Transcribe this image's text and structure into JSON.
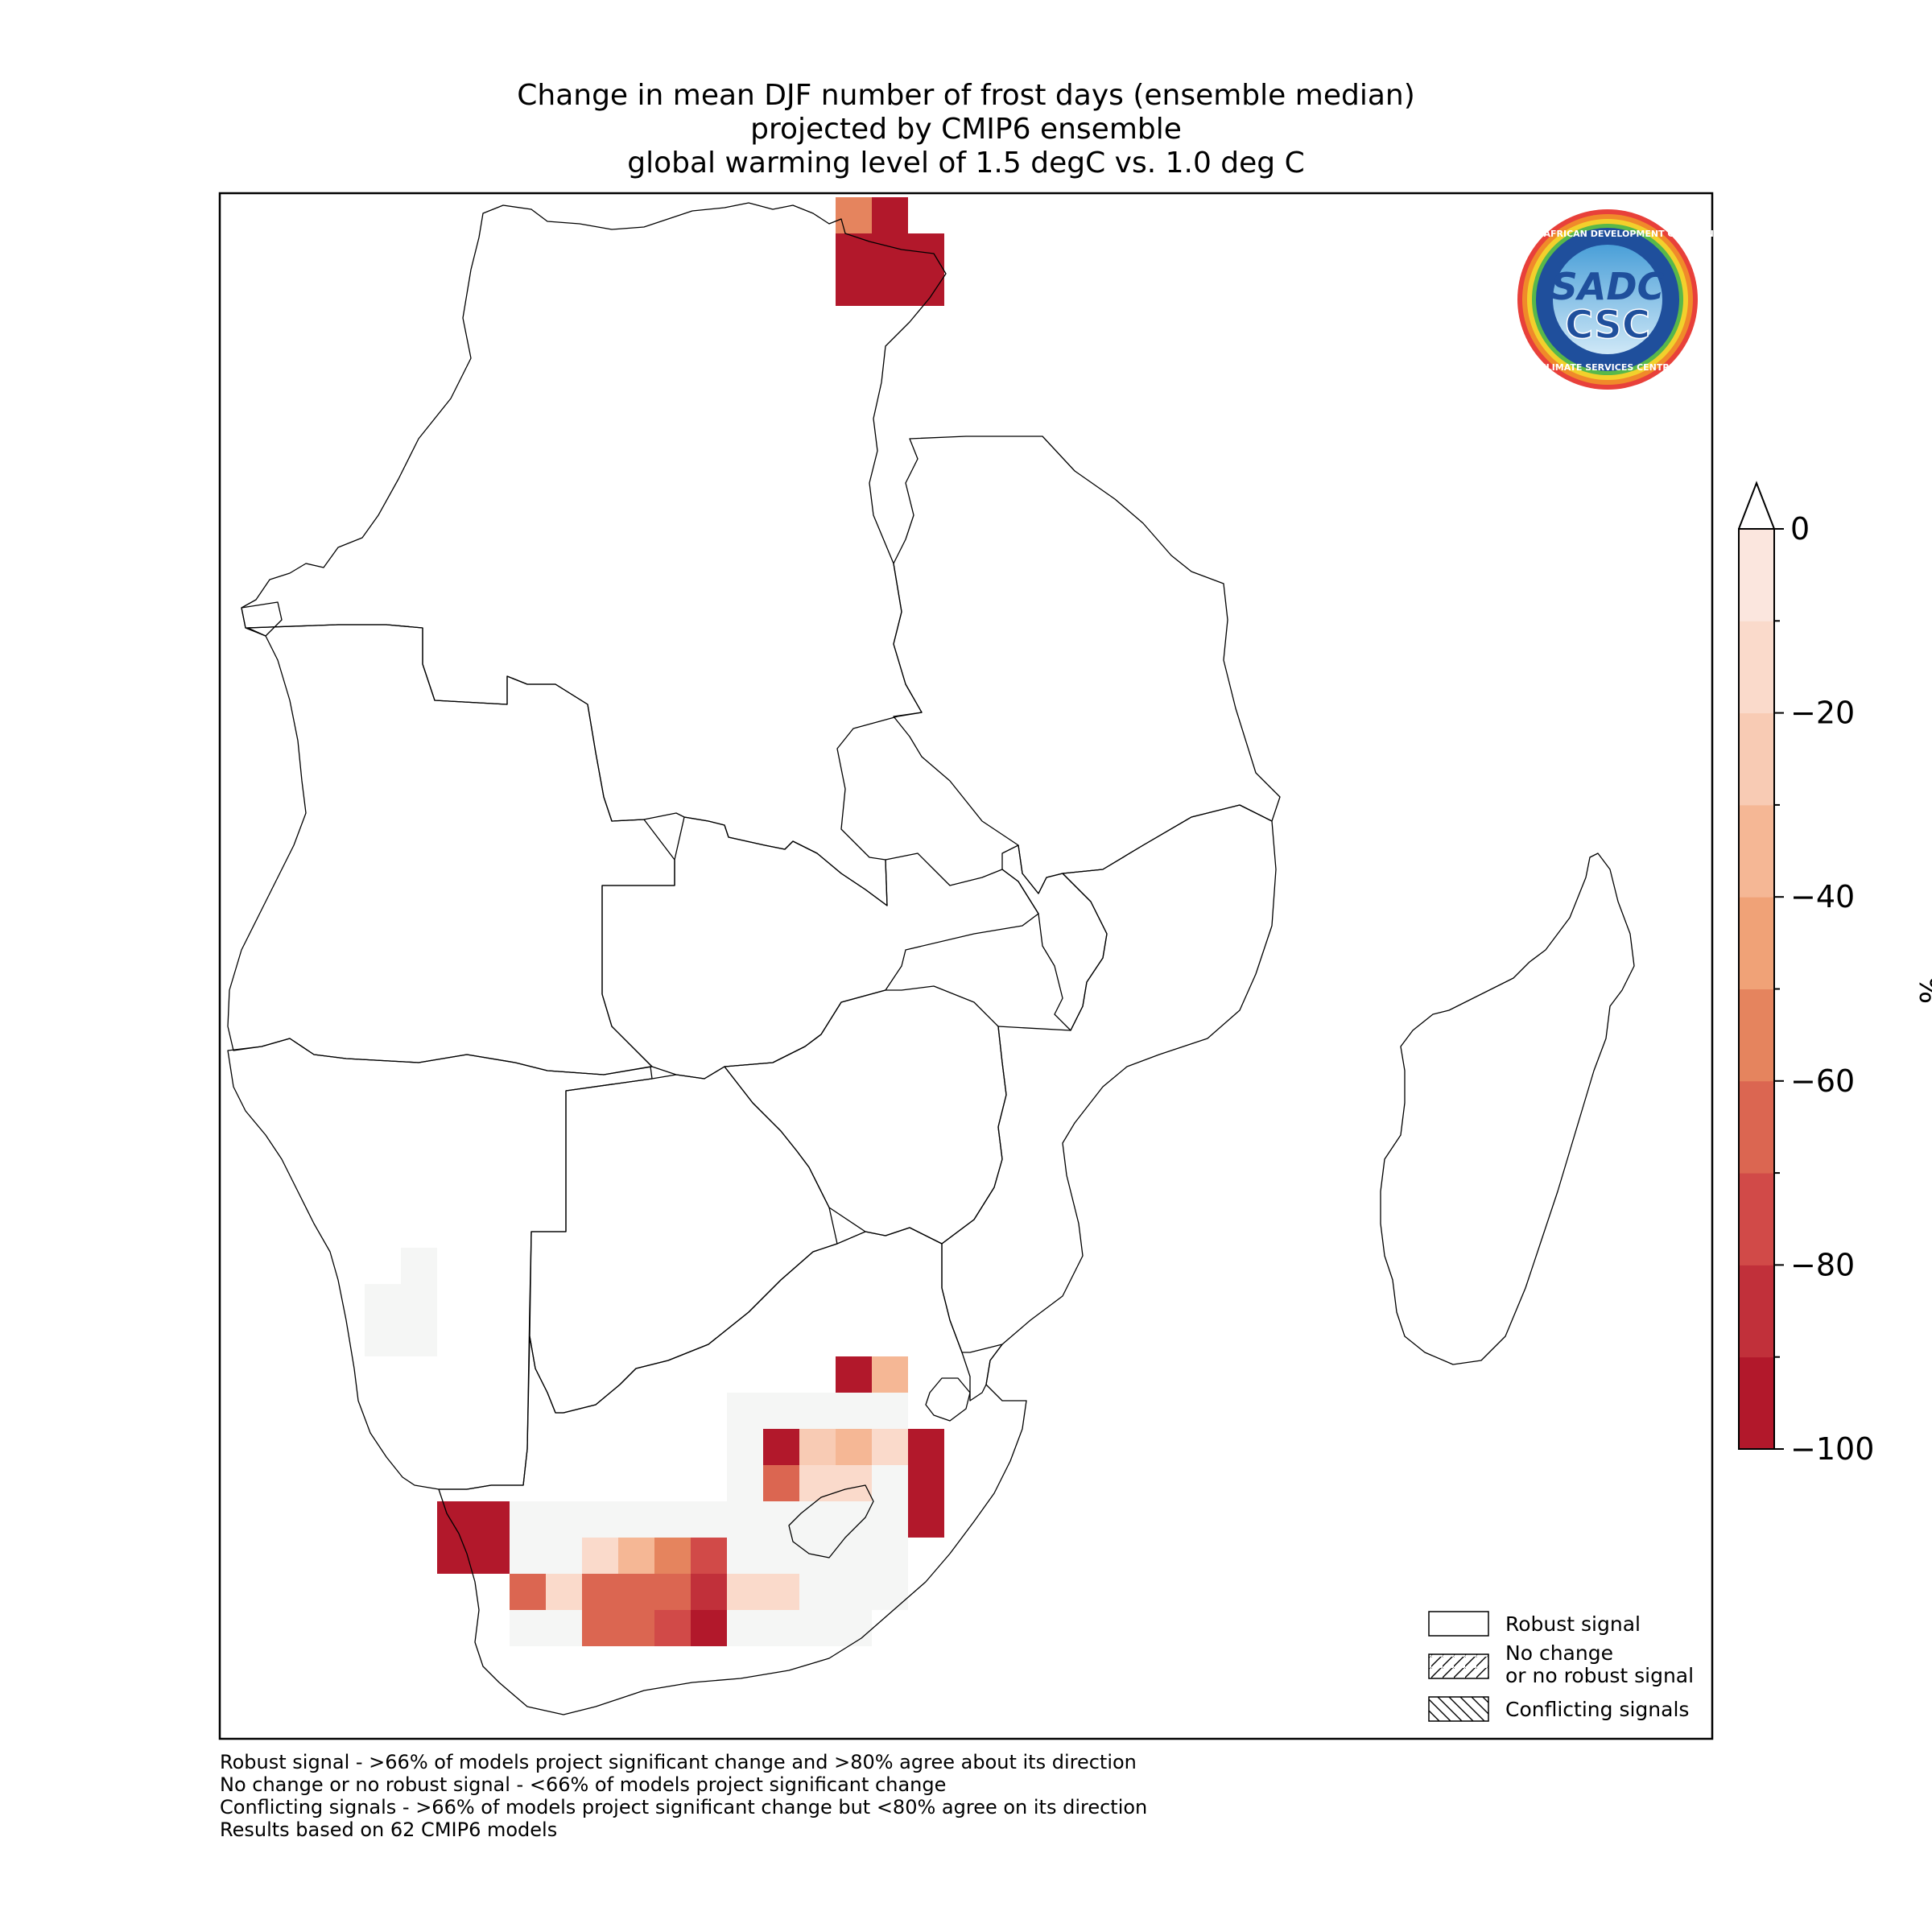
{
  "title": {
    "line1": "Change in mean DJF number of frost days (ensemble median)",
    "line2": "projected by CMIP6 ensemble",
    "line3": "global warming level of 1.5 degC vs. 1.0 deg C"
  },
  "colorbar": {
    "unit": "%",
    "ticks": [
      "0",
      "−20",
      "−40",
      "−60",
      "−80",
      "−100"
    ],
    "tick_values": [
      0,
      -20,
      -40,
      -60,
      -80,
      -100
    ],
    "range": [
      -100,
      0
    ],
    "extend": "max",
    "colors": [
      "#b2182b",
      "#c1303a",
      "#d14a48",
      "#db6651",
      "#e5845e",
      "#f0a277",
      "#f5b795",
      "#f8cbb4",
      "#fadacb",
      "#fbe6de"
    ]
  },
  "legend": {
    "robust": "Robust signal",
    "no_change_line1": "No change",
    "no_change_line2": "or no robust signal",
    "conflicting": "Conflicting signals"
  },
  "footnotes": {
    "line1": "Robust signal - >66% of models project significant change and >80% agree about its direction",
    "line2": "No change or no robust signal - <66% of models project significant change",
    "line3": "Conflicting signals - >66% of models project significant change but <80% agree on its direction",
    "line4": "Results based on 62 CMIP6 models"
  },
  "logo": {
    "top_text": "SOUTHERN AFRICAN DEVELOPMENT COMMUNITY",
    "bottom_text": "CLIMATE SERVICES CENTRE",
    "monogram_top": "SADC",
    "monogram_bottom": "CSC"
  },
  "map_cells": [
    {
      "row": 0,
      "col": 17,
      "value": -60
    },
    {
      "row": 0,
      "col": 18,
      "value": -100
    },
    {
      "row": 1,
      "col": 17,
      "value": -100
    },
    {
      "row": 1,
      "col": 18,
      "value": -100
    },
    {
      "row": 1,
      "col": 19,
      "value": -100
    },
    {
      "row": 2,
      "col": 17,
      "value": -100
    },
    {
      "row": 2,
      "col": 18,
      "value": -100
    },
    {
      "row": 2,
      "col": 19,
      "value": -100
    },
    {
      "row": 29,
      "col": 5,
      "value": 0
    },
    {
      "row": 30,
      "col": 4,
      "value": 0
    },
    {
      "row": 30,
      "col": 5,
      "value": 0
    },
    {
      "row": 31,
      "col": 4,
      "value": 0
    },
    {
      "row": 31,
      "col": 5,
      "value": 0
    },
    {
      "row": 32,
      "col": 17,
      "value": -100
    },
    {
      "row": 32,
      "col": 18,
      "value": -35
    },
    {
      "row": 33,
      "col": 14,
      "value": 0
    },
    {
      "row": 33,
      "col": 15,
      "value": 0
    },
    {
      "row": 33,
      "col": 16,
      "value": 0
    },
    {
      "row": 33,
      "col": 17,
      "value": 0
    },
    {
      "row": 33,
      "col": 18,
      "value": 0
    },
    {
      "row": 34,
      "col": 14,
      "value": 0
    },
    {
      "row": 34,
      "col": 15,
      "value": -100
    },
    {
      "row": 34,
      "col": 16,
      "value": -25
    },
    {
      "row": 34,
      "col": 17,
      "value": -35
    },
    {
      "row": 34,
      "col": 18,
      "value": -15
    },
    {
      "row": 34,
      "col": 19,
      "value": -100
    },
    {
      "row": 35,
      "col": 14,
      "value": 0
    },
    {
      "row": 35,
      "col": 15,
      "value": -65
    },
    {
      "row": 35,
      "col": 16,
      "value": -15
    },
    {
      "row": 35,
      "col": 17,
      "value": -15
    },
    {
      "row": 35,
      "col": 18,
      "value": 0
    },
    {
      "row": 35,
      "col": 19,
      "value": -100
    },
    {
      "row": 36,
      "col": 6,
      "value": -100
    },
    {
      "row": 36,
      "col": 7,
      "value": -100
    },
    {
      "row": 36,
      "col": 8,
      "value": 0
    },
    {
      "row": 36,
      "col": 9,
      "value": 0
    },
    {
      "row": 36,
      "col": 10,
      "value": 0
    },
    {
      "row": 36,
      "col": 11,
      "value": 0
    },
    {
      "row": 36,
      "col": 12,
      "value": 0
    },
    {
      "row": 36,
      "col": 13,
      "value": 0
    },
    {
      "row": 36,
      "col": 14,
      "value": 0
    },
    {
      "row": 36,
      "col": 15,
      "value": 0
    },
    {
      "row": 36,
      "col": 16,
      "value": 0
    },
    {
      "row": 36,
      "col": 17,
      "value": 0
    },
    {
      "row": 36,
      "col": 18,
      "value": 0
    },
    {
      "row": 36,
      "col": 19,
      "value": -100
    },
    {
      "row": 37,
      "col": 6,
      "value": -100
    },
    {
      "row": 37,
      "col": 7,
      "value": -100
    },
    {
      "row": 37,
      "col": 8,
      "value": 0
    },
    {
      "row": 37,
      "col": 9,
      "value": 0
    },
    {
      "row": 37,
      "col": 10,
      "value": -15
    },
    {
      "row": 37,
      "col": 11,
      "value": -35
    },
    {
      "row": 37,
      "col": 12,
      "value": -55
    },
    {
      "row": 37,
      "col": 13,
      "value": -75
    },
    {
      "row": 37,
      "col": 14,
      "value": 0
    },
    {
      "row": 37,
      "col": 15,
      "value": 0
    },
    {
      "row": 37,
      "col": 16,
      "value": 0
    },
    {
      "row": 37,
      "col": 17,
      "value": 0
    },
    {
      "row": 37,
      "col": 18,
      "value": 0
    },
    {
      "row": 38,
      "col": 8,
      "value": -70
    },
    {
      "row": 38,
      "col": 9,
      "value": -15
    },
    {
      "row": 38,
      "col": 10,
      "value": -65
    },
    {
      "row": 38,
      "col": 11,
      "value": -65
    },
    {
      "row": 38,
      "col": 12,
      "value": -65
    },
    {
      "row": 38,
      "col": 13,
      "value": -85
    },
    {
      "row": 38,
      "col": 14,
      "value": -15
    },
    {
      "row": 38,
      "col": 15,
      "value": -15
    },
    {
      "row": 38,
      "col": 16,
      "value": 0
    },
    {
      "row": 38,
      "col": 17,
      "value": 0
    },
    {
      "row": 38,
      "col": 18,
      "value": 0
    },
    {
      "row": 39,
      "col": 8,
      "value": 0
    },
    {
      "row": 39,
      "col": 9,
      "value": 0
    },
    {
      "row": 39,
      "col": 10,
      "value": -65
    },
    {
      "row": 39,
      "col": 11,
      "value": -65
    },
    {
      "row": 39,
      "col": 12,
      "value": -75
    },
    {
      "row": 39,
      "col": 13,
      "value": -100
    },
    {
      "row": 39,
      "col": 14,
      "value": 0
    },
    {
      "row": 39,
      "col": 15,
      "value": 0
    },
    {
      "row": 39,
      "col": 16,
      "value": 0
    },
    {
      "row": 39,
      "col": 17,
      "value": 0
    }
  ]
}
